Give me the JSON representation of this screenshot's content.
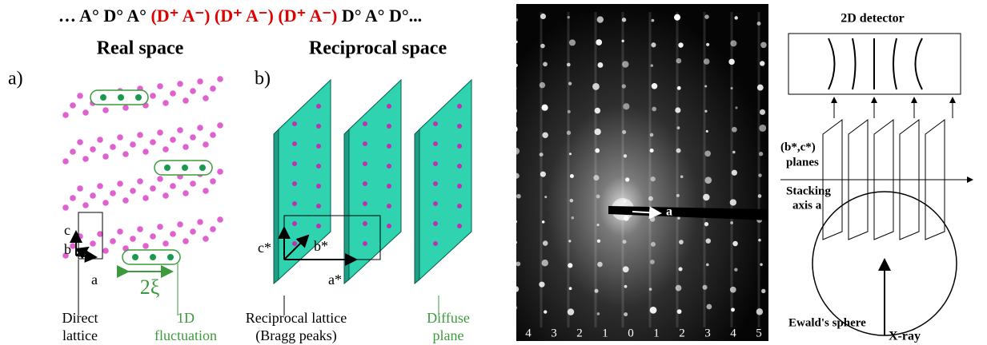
{
  "header": {
    "parts": [
      "… A° D° A°",
      "(D⁺ A⁻) (D⁺ A⁻) (D⁺ A⁻)",
      "D° A° D°..."
    ]
  },
  "panel_a": {
    "label": "a)",
    "title": "Real space",
    "axis_c": "c",
    "axis_b": "b",
    "axis_a": "a",
    "width": "2ξ",
    "caption_left": [
      "Direct",
      "lattice"
    ],
    "caption_right": [
      "1D",
      "fluctuation"
    ]
  },
  "panel_b": {
    "label": "b)",
    "title": "Reciprocal space",
    "axis_c": "c*",
    "axis_b": "b*",
    "axis_a": "a*",
    "caption_left": [
      "Reciprocal lattice",
      "(Bragg peaks)"
    ],
    "caption_right": [
      "Diffuse",
      "plane"
    ]
  },
  "photo": {
    "axis": "a",
    "numbers": [
      "4",
      "3",
      "2",
      "1",
      "0",
      "1",
      "2",
      "3",
      "4",
      "5"
    ]
  },
  "schematic": {
    "detector": "2D detector",
    "planes": [
      "(b*,c*)",
      "planes"
    ],
    "stacking": [
      "Stacking",
      "axis a"
    ],
    "sphere": "Ewald's sphere",
    "beam": "X-ray"
  }
}
